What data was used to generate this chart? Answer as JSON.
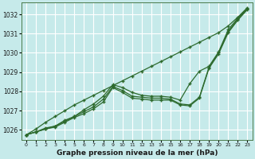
{
  "title": "Graphe pression niveau de la mer (hPa)",
  "bg_color": "#c6eaea",
  "grid_color": "#ffffff",
  "line_color": "#2d6a2d",
  "marker": "+",
  "xlim": [
    -0.5,
    23.5
  ],
  "ylim": [
    1025.5,
    1032.6
  ],
  "xticks": [
    0,
    1,
    2,
    3,
    4,
    5,
    6,
    7,
    8,
    9,
    10,
    11,
    12,
    13,
    14,
    15,
    16,
    17,
    18,
    19,
    20,
    21,
    22,
    23
  ],
  "yticks": [
    1026,
    1027,
    1028,
    1029,
    1030,
    1031,
    1032
  ],
  "series": [
    [
      1025.75,
      1026.05,
      1026.4,
      1026.7,
      1027.0,
      1027.3,
      1027.55,
      1027.8,
      1028.05,
      1028.3,
      1028.55,
      1028.8,
      1029.05,
      1029.3,
      1029.55,
      1029.8,
      1030.05,
      1030.3,
      1030.55,
      1030.8,
      1031.05,
      1031.4,
      1031.85,
      1032.35
    ],
    [
      1025.75,
      1025.9,
      1026.1,
      1026.2,
      1026.5,
      1026.7,
      1027.05,
      1027.35,
      1027.75,
      1028.35,
      1028.2,
      1027.95,
      1027.8,
      1027.75,
      1027.75,
      1027.7,
      1027.55,
      1028.4,
      1029.05,
      1029.3,
      1030.05,
      1031.2,
      1031.8,
      1032.3
    ],
    [
      1025.75,
      1025.9,
      1026.05,
      1026.2,
      1026.45,
      1026.7,
      1026.95,
      1027.2,
      1027.6,
      1028.25,
      1028.05,
      1027.75,
      1027.7,
      1027.65,
      1027.65,
      1027.6,
      1027.35,
      1027.3,
      1027.7,
      1029.25,
      1030.0,
      1031.1,
      1031.75,
      1032.3
    ],
    [
      1025.75,
      1025.9,
      1026.05,
      1026.15,
      1026.4,
      1026.65,
      1026.85,
      1027.1,
      1027.45,
      1028.2,
      1027.95,
      1027.65,
      1027.6,
      1027.55,
      1027.55,
      1027.55,
      1027.3,
      1027.25,
      1027.65,
      1029.2,
      1029.95,
      1031.05,
      1031.7,
      1032.25
    ]
  ]
}
